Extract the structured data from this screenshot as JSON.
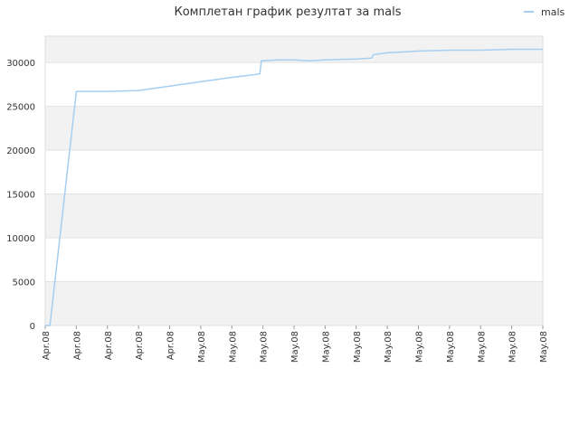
{
  "chart_data": {
    "type": "line",
    "title": "Комплетан график резултат за mals",
    "xlabel": "",
    "ylabel": "",
    "ylim": [
      0,
      33000
    ],
    "y_ticks": [
      0,
      5000,
      10000,
      15000,
      20000,
      25000,
      30000
    ],
    "x_tick_labels": [
      "Apr.08",
      "Apr.08",
      "Apr.08",
      "Apr.08",
      "Apr.08",
      "May.08",
      "May.08",
      "May.08",
      "May.08",
      "May.08",
      "May.08",
      "May.08",
      "May.08",
      "May.08",
      "May.08",
      "May.08",
      "May.08"
    ],
    "grid": true,
    "legend_position": "top-right",
    "series": [
      {
        "name": "mals",
        "color": "#a6cef0",
        "x": [
          0,
          0.15,
          1.0,
          2.0,
          3.0,
          4.0,
          5.0,
          6.0,
          6.9,
          6.95,
          7.5,
          8.0,
          8.5,
          9.0,
          10.0,
          10.5,
          10.55,
          11.0,
          11.5,
          12.0,
          13.0,
          14.0,
          15.0,
          16.0
        ],
        "y": [
          0,
          0,
          26700,
          26700,
          26800,
          27300,
          27800,
          28300,
          28700,
          30200,
          30300,
          30300,
          30200,
          30300,
          30400,
          30500,
          30900,
          31100,
          31200,
          31300,
          31400,
          31400,
          31500,
          31500
        ]
      }
    ]
  }
}
